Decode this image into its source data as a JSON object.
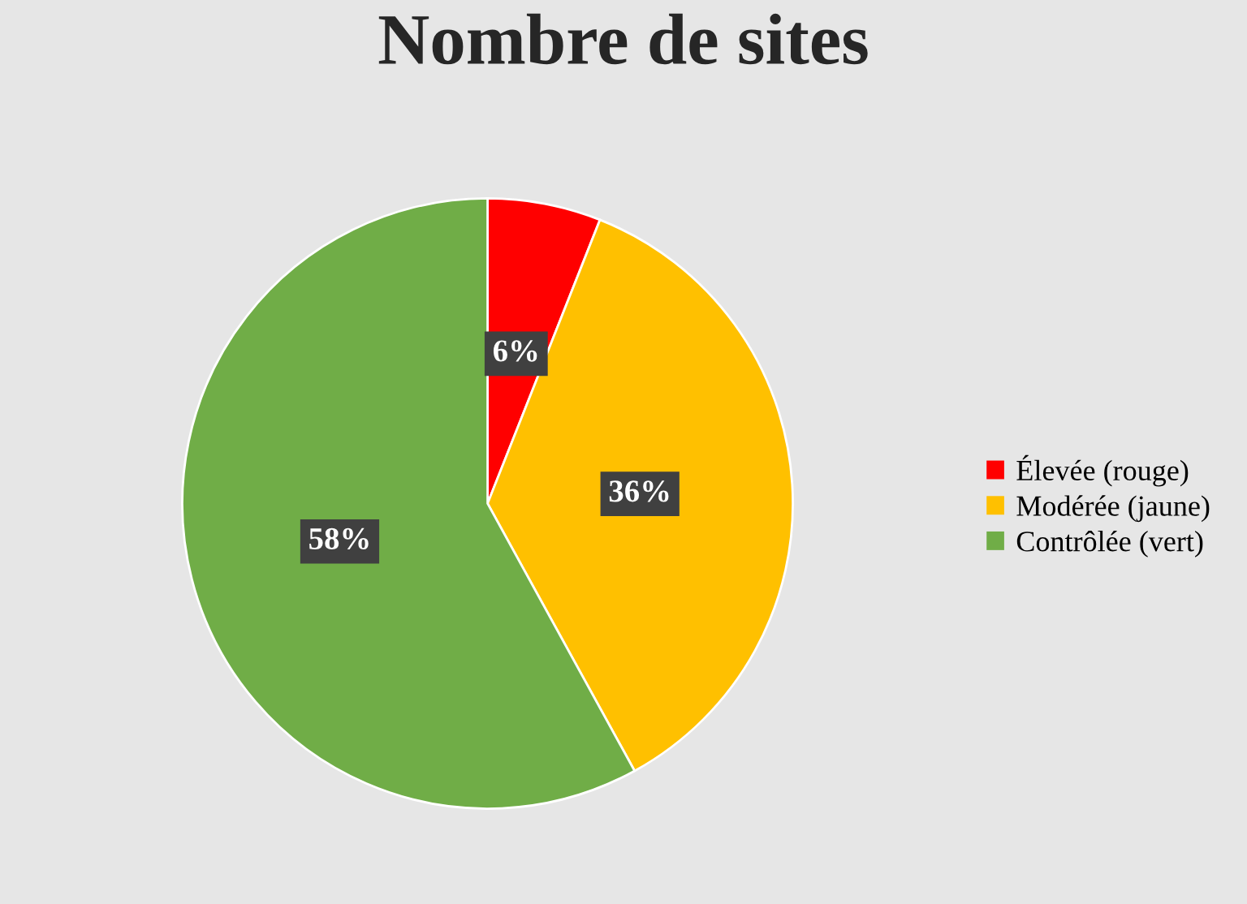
{
  "chart_data": {
    "type": "pie",
    "title": "Nombre de sites",
    "categories": [
      "Élevée (rouge)",
      "Modérée (jaune)",
      "Contrôlée (vert)"
    ],
    "values": [
      6,
      36,
      58
    ],
    "colors": [
      "#ff0000",
      "#ffc000",
      "#70ad47"
    ],
    "value_labels": [
      "6%",
      "36%",
      "58%"
    ],
    "legend": "right"
  }
}
